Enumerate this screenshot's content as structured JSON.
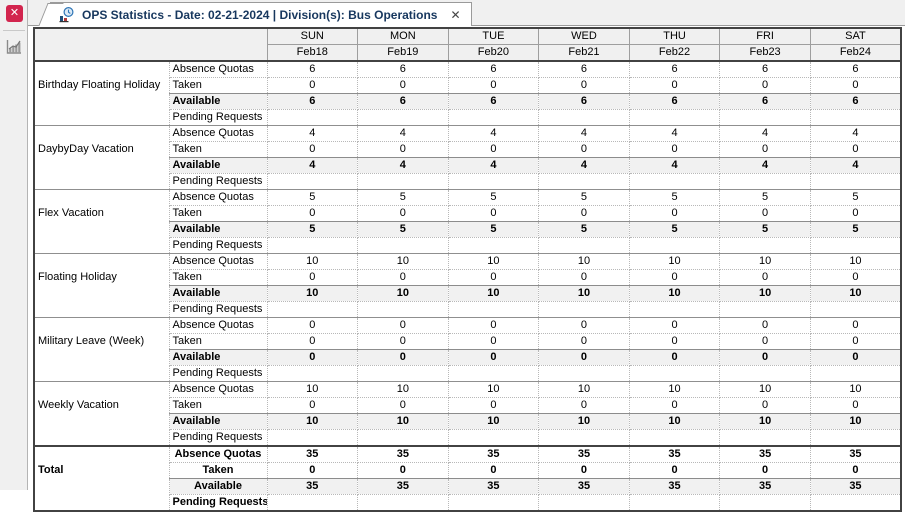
{
  "tab": {
    "title": "OPS Statistics - Date: 02-21-2024 | Division(s): Bus Operations",
    "close_icon": "✕"
  },
  "sidebar": {
    "close_icon": "✕"
  },
  "colors": {
    "tab_text": "#17375e",
    "close_button_bg": "#d2254e",
    "header_bg": "#f0f0f0"
  },
  "table": {
    "columns": [
      {
        "day": "SUN",
        "date": "Feb18"
      },
      {
        "day": "MON",
        "date": "Feb19"
      },
      {
        "day": "TUE",
        "date": "Feb20"
      },
      {
        "day": "WED",
        "date": "Feb21"
      },
      {
        "day": "THU",
        "date": "Feb22"
      },
      {
        "day": "FRI",
        "date": "Feb23"
      },
      {
        "day": "SAT",
        "date": "Feb24"
      }
    ],
    "groups": [
      {
        "name": "Birthday Floating Holiday",
        "is_total": false,
        "rows": [
          {
            "label": "Absence Quotas",
            "emphasis": false,
            "values": [
              "6",
              "6",
              "6",
              "6",
              "6",
              "6",
              "6"
            ]
          },
          {
            "label": "Taken",
            "emphasis": false,
            "values": [
              "0",
              "0",
              "0",
              "0",
              "0",
              "0",
              "0"
            ]
          },
          {
            "label": "Available",
            "emphasis": true,
            "values": [
              "6",
              "6",
              "6",
              "6",
              "6",
              "6",
              "6"
            ]
          },
          {
            "label": "Pending Requests",
            "emphasis": false,
            "values": [
              "",
              "",
              "",
              "",
              "",
              "",
              ""
            ]
          }
        ]
      },
      {
        "name": "DaybyDay Vacation",
        "is_total": false,
        "rows": [
          {
            "label": "Absence Quotas",
            "emphasis": false,
            "values": [
              "4",
              "4",
              "4",
              "4",
              "4",
              "4",
              "4"
            ]
          },
          {
            "label": "Taken",
            "emphasis": false,
            "values": [
              "0",
              "0",
              "0",
              "0",
              "0",
              "0",
              "0"
            ]
          },
          {
            "label": "Available",
            "emphasis": true,
            "values": [
              "4",
              "4",
              "4",
              "4",
              "4",
              "4",
              "4"
            ]
          },
          {
            "label": "Pending Requests",
            "emphasis": false,
            "values": [
              "",
              "",
              "",
              "",
              "",
              "",
              ""
            ]
          }
        ]
      },
      {
        "name": "Flex Vacation",
        "is_total": false,
        "rows": [
          {
            "label": "Absence Quotas",
            "emphasis": false,
            "values": [
              "5",
              "5",
              "5",
              "5",
              "5",
              "5",
              "5"
            ]
          },
          {
            "label": "Taken",
            "emphasis": false,
            "values": [
              "0",
              "0",
              "0",
              "0",
              "0",
              "0",
              "0"
            ]
          },
          {
            "label": "Available",
            "emphasis": true,
            "values": [
              "5",
              "5",
              "5",
              "5",
              "5",
              "5",
              "5"
            ]
          },
          {
            "label": "Pending Requests",
            "emphasis": false,
            "values": [
              "",
              "",
              "",
              "",
              "",
              "",
              ""
            ]
          }
        ]
      },
      {
        "name": "Floating Holiday",
        "is_total": false,
        "rows": [
          {
            "label": "Absence Quotas",
            "emphasis": false,
            "values": [
              "10",
              "10",
              "10",
              "10",
              "10",
              "10",
              "10"
            ]
          },
          {
            "label": "Taken",
            "emphasis": false,
            "values": [
              "0",
              "0",
              "0",
              "0",
              "0",
              "0",
              "0"
            ]
          },
          {
            "label": "Available",
            "emphasis": true,
            "values": [
              "10",
              "10",
              "10",
              "10",
              "10",
              "10",
              "10"
            ]
          },
          {
            "label": "Pending Requests",
            "emphasis": false,
            "values": [
              "",
              "",
              "",
              "",
              "",
              "",
              ""
            ]
          }
        ]
      },
      {
        "name": "Military Leave (Week)",
        "is_total": false,
        "rows": [
          {
            "label": "Absence Quotas",
            "emphasis": false,
            "values": [
              "0",
              "0",
              "0",
              "0",
              "0",
              "0",
              "0"
            ]
          },
          {
            "label": "Taken",
            "emphasis": false,
            "values": [
              "0",
              "0",
              "0",
              "0",
              "0",
              "0",
              "0"
            ]
          },
          {
            "label": "Available",
            "emphasis": true,
            "values": [
              "0",
              "0",
              "0",
              "0",
              "0",
              "0",
              "0"
            ]
          },
          {
            "label": "Pending Requests",
            "emphasis": false,
            "values": [
              "",
              "",
              "",
              "",
              "",
              "",
              ""
            ]
          }
        ]
      },
      {
        "name": "Weekly Vacation",
        "is_total": false,
        "rows": [
          {
            "label": "Absence Quotas",
            "emphasis": false,
            "values": [
              "10",
              "10",
              "10",
              "10",
              "10",
              "10",
              "10"
            ]
          },
          {
            "label": "Taken",
            "emphasis": false,
            "values": [
              "0",
              "0",
              "0",
              "0",
              "0",
              "0",
              "0"
            ]
          },
          {
            "label": "Available",
            "emphasis": true,
            "values": [
              "10",
              "10",
              "10",
              "10",
              "10",
              "10",
              "10"
            ]
          },
          {
            "label": "Pending Requests",
            "emphasis": false,
            "values": [
              "",
              "",
              "",
              "",
              "",
              "",
              ""
            ]
          }
        ]
      },
      {
        "name": "Total",
        "is_total": true,
        "rows": [
          {
            "label": "Absence Quotas",
            "emphasis": false,
            "values": [
              "35",
              "35",
              "35",
              "35",
              "35",
              "35",
              "35"
            ]
          },
          {
            "label": "Taken",
            "emphasis": false,
            "values": [
              "0",
              "0",
              "0",
              "0",
              "0",
              "0",
              "0"
            ]
          },
          {
            "label": "Available",
            "emphasis": true,
            "values": [
              "35",
              "35",
              "35",
              "35",
              "35",
              "35",
              "35"
            ]
          },
          {
            "label": "Pending Requests",
            "emphasis": false,
            "values": [
              "",
              "",
              "",
              "",
              "",
              "",
              ""
            ]
          }
        ]
      }
    ]
  }
}
